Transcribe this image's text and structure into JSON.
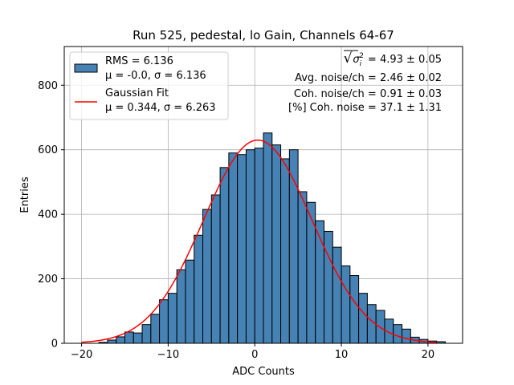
{
  "chart_data": {
    "type": "bar",
    "title": "Run 525, pedestal, lo Gain, Channels 64-67",
    "xlabel": "ADC Counts",
    "ylabel": "Entries",
    "xlim": [
      -22,
      24
    ],
    "ylim": [
      0,
      920
    ],
    "xticks": [
      -20,
      -10,
      0,
      10,
      20
    ],
    "yticks": [
      0,
      200,
      400,
      600,
      800
    ],
    "xtick_labels": [
      "−20",
      "−10",
      "0",
      "10",
      "20"
    ],
    "ytick_labels": [
      "0",
      "200",
      "400",
      "600",
      "800"
    ],
    "grid": true,
    "histogram": {
      "bin_edges_start": -18,
      "bin_width": 1,
      "counts": [
        3,
        10,
        20,
        35,
        32,
        58,
        90,
        135,
        155,
        228,
        258,
        335,
        415,
        460,
        545,
        590,
        585,
        600,
        605,
        652,
        615,
        572,
        600,
        470,
        437,
        380,
        347,
        298,
        240,
        210,
        155,
        120,
        102,
        75,
        58,
        44,
        19,
        12,
        7,
        5
      ]
    },
    "fit": {
      "name": "Gaussian Fit",
      "mu": 0.344,
      "sigma": 6.263,
      "amplitude": 630,
      "range": [
        -20,
        21
      ]
    },
    "legend": {
      "placement": "upper-left",
      "entries": [
        {
          "kind": "patch",
          "line1": "RMS = 6.136",
          "line2": "μ = -0.0, σ = 6.136",
          "color": "#4682b4"
        },
        {
          "kind": "line",
          "line1": "Gaussian Fit",
          "line2": "μ = 0.344, σ = 6.263",
          "color": "#ff0000"
        }
      ]
    },
    "annotations": {
      "sqrt_symbol": "√",
      "sigma_sq": "σ",
      "sub_i": "i",
      "sup_2": "2",
      "line1_value": "= 4.93 ± 0.05",
      "line2": "Avg. noise/ch = 2.46 ± 0.02",
      "line3": "Coh. noise/ch = 0.91 ± 0.03",
      "line4": "[%] Coh. noise = 37.1 ± 1.31"
    },
    "colors": {
      "bar": "#4682b4",
      "fit": "#ff0000",
      "grid": "#b0b0b0"
    }
  }
}
